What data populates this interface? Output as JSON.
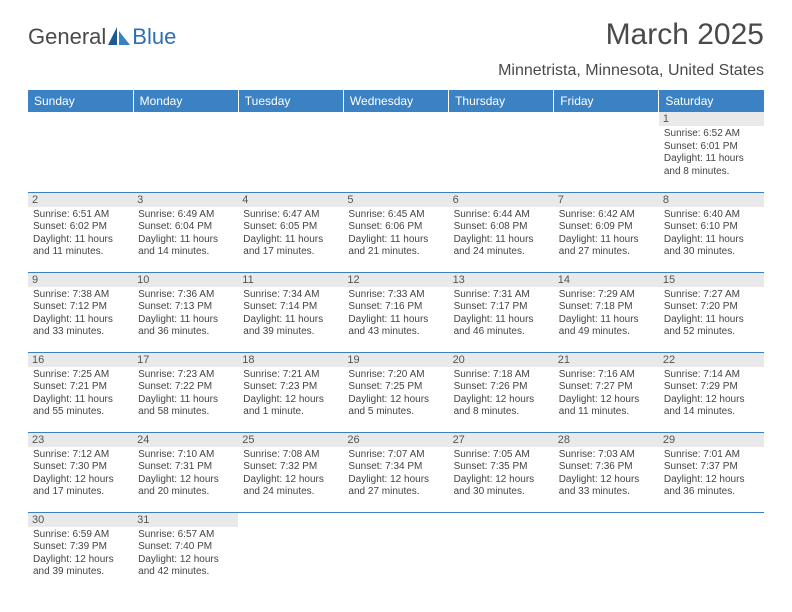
{
  "logo": {
    "text1": "General",
    "text2": "Blue"
  },
  "title": "March 2025",
  "location": "Minnetrista, Minnesota, United States",
  "colors": {
    "header_bg": "#3b82c4",
    "header_fg": "#ffffff",
    "daynum_bg": "#e9e9e9",
    "cell_border": "#3b82c4",
    "text": "#444444",
    "logo_gray": "#4a4a4a",
    "logo_blue": "#2f6fb0"
  },
  "day_headers": [
    "Sunday",
    "Monday",
    "Tuesday",
    "Wednesday",
    "Thursday",
    "Friday",
    "Saturday"
  ],
  "weeks": [
    [
      {
        "n": "",
        "sr": "",
        "ss": "",
        "d1": "",
        "d2": ""
      },
      {
        "n": "",
        "sr": "",
        "ss": "",
        "d1": "",
        "d2": ""
      },
      {
        "n": "",
        "sr": "",
        "ss": "",
        "d1": "",
        "d2": ""
      },
      {
        "n": "",
        "sr": "",
        "ss": "",
        "d1": "",
        "d2": ""
      },
      {
        "n": "",
        "sr": "",
        "ss": "",
        "d1": "",
        "d2": ""
      },
      {
        "n": "",
        "sr": "",
        "ss": "",
        "d1": "",
        "d2": ""
      },
      {
        "n": "1",
        "sr": "Sunrise: 6:52 AM",
        "ss": "Sunset: 6:01 PM",
        "d1": "Daylight: 11 hours",
        "d2": "and 8 minutes."
      }
    ],
    [
      {
        "n": "2",
        "sr": "Sunrise: 6:51 AM",
        "ss": "Sunset: 6:02 PM",
        "d1": "Daylight: 11 hours",
        "d2": "and 11 minutes."
      },
      {
        "n": "3",
        "sr": "Sunrise: 6:49 AM",
        "ss": "Sunset: 6:04 PM",
        "d1": "Daylight: 11 hours",
        "d2": "and 14 minutes."
      },
      {
        "n": "4",
        "sr": "Sunrise: 6:47 AM",
        "ss": "Sunset: 6:05 PM",
        "d1": "Daylight: 11 hours",
        "d2": "and 17 minutes."
      },
      {
        "n": "5",
        "sr": "Sunrise: 6:45 AM",
        "ss": "Sunset: 6:06 PM",
        "d1": "Daylight: 11 hours",
        "d2": "and 21 minutes."
      },
      {
        "n": "6",
        "sr": "Sunrise: 6:44 AM",
        "ss": "Sunset: 6:08 PM",
        "d1": "Daylight: 11 hours",
        "d2": "and 24 minutes."
      },
      {
        "n": "7",
        "sr": "Sunrise: 6:42 AM",
        "ss": "Sunset: 6:09 PM",
        "d1": "Daylight: 11 hours",
        "d2": "and 27 minutes."
      },
      {
        "n": "8",
        "sr": "Sunrise: 6:40 AM",
        "ss": "Sunset: 6:10 PM",
        "d1": "Daylight: 11 hours",
        "d2": "and 30 minutes."
      }
    ],
    [
      {
        "n": "9",
        "sr": "Sunrise: 7:38 AM",
        "ss": "Sunset: 7:12 PM",
        "d1": "Daylight: 11 hours",
        "d2": "and 33 minutes."
      },
      {
        "n": "10",
        "sr": "Sunrise: 7:36 AM",
        "ss": "Sunset: 7:13 PM",
        "d1": "Daylight: 11 hours",
        "d2": "and 36 minutes."
      },
      {
        "n": "11",
        "sr": "Sunrise: 7:34 AM",
        "ss": "Sunset: 7:14 PM",
        "d1": "Daylight: 11 hours",
        "d2": "and 39 minutes."
      },
      {
        "n": "12",
        "sr": "Sunrise: 7:33 AM",
        "ss": "Sunset: 7:16 PM",
        "d1": "Daylight: 11 hours",
        "d2": "and 43 minutes."
      },
      {
        "n": "13",
        "sr": "Sunrise: 7:31 AM",
        "ss": "Sunset: 7:17 PM",
        "d1": "Daylight: 11 hours",
        "d2": "and 46 minutes."
      },
      {
        "n": "14",
        "sr": "Sunrise: 7:29 AM",
        "ss": "Sunset: 7:18 PM",
        "d1": "Daylight: 11 hours",
        "d2": "and 49 minutes."
      },
      {
        "n": "15",
        "sr": "Sunrise: 7:27 AM",
        "ss": "Sunset: 7:20 PM",
        "d1": "Daylight: 11 hours",
        "d2": "and 52 minutes."
      }
    ],
    [
      {
        "n": "16",
        "sr": "Sunrise: 7:25 AM",
        "ss": "Sunset: 7:21 PM",
        "d1": "Daylight: 11 hours",
        "d2": "and 55 minutes."
      },
      {
        "n": "17",
        "sr": "Sunrise: 7:23 AM",
        "ss": "Sunset: 7:22 PM",
        "d1": "Daylight: 11 hours",
        "d2": "and 58 minutes."
      },
      {
        "n": "18",
        "sr": "Sunrise: 7:21 AM",
        "ss": "Sunset: 7:23 PM",
        "d1": "Daylight: 12 hours",
        "d2": "and 1 minute."
      },
      {
        "n": "19",
        "sr": "Sunrise: 7:20 AM",
        "ss": "Sunset: 7:25 PM",
        "d1": "Daylight: 12 hours",
        "d2": "and 5 minutes."
      },
      {
        "n": "20",
        "sr": "Sunrise: 7:18 AM",
        "ss": "Sunset: 7:26 PM",
        "d1": "Daylight: 12 hours",
        "d2": "and 8 minutes."
      },
      {
        "n": "21",
        "sr": "Sunrise: 7:16 AM",
        "ss": "Sunset: 7:27 PM",
        "d1": "Daylight: 12 hours",
        "d2": "and 11 minutes."
      },
      {
        "n": "22",
        "sr": "Sunrise: 7:14 AM",
        "ss": "Sunset: 7:29 PM",
        "d1": "Daylight: 12 hours",
        "d2": "and 14 minutes."
      }
    ],
    [
      {
        "n": "23",
        "sr": "Sunrise: 7:12 AM",
        "ss": "Sunset: 7:30 PM",
        "d1": "Daylight: 12 hours",
        "d2": "and 17 minutes."
      },
      {
        "n": "24",
        "sr": "Sunrise: 7:10 AM",
        "ss": "Sunset: 7:31 PM",
        "d1": "Daylight: 12 hours",
        "d2": "and 20 minutes."
      },
      {
        "n": "25",
        "sr": "Sunrise: 7:08 AM",
        "ss": "Sunset: 7:32 PM",
        "d1": "Daylight: 12 hours",
        "d2": "and 24 minutes."
      },
      {
        "n": "26",
        "sr": "Sunrise: 7:07 AM",
        "ss": "Sunset: 7:34 PM",
        "d1": "Daylight: 12 hours",
        "d2": "and 27 minutes."
      },
      {
        "n": "27",
        "sr": "Sunrise: 7:05 AM",
        "ss": "Sunset: 7:35 PM",
        "d1": "Daylight: 12 hours",
        "d2": "and 30 minutes."
      },
      {
        "n": "28",
        "sr": "Sunrise: 7:03 AM",
        "ss": "Sunset: 7:36 PM",
        "d1": "Daylight: 12 hours",
        "d2": "and 33 minutes."
      },
      {
        "n": "29",
        "sr": "Sunrise: 7:01 AM",
        "ss": "Sunset: 7:37 PM",
        "d1": "Daylight: 12 hours",
        "d2": "and 36 minutes."
      }
    ],
    [
      {
        "n": "30",
        "sr": "Sunrise: 6:59 AM",
        "ss": "Sunset: 7:39 PM",
        "d1": "Daylight: 12 hours",
        "d2": "and 39 minutes."
      },
      {
        "n": "31",
        "sr": "Sunrise: 6:57 AM",
        "ss": "Sunset: 7:40 PM",
        "d1": "Daylight: 12 hours",
        "d2": "and 42 minutes."
      },
      {
        "n": "",
        "sr": "",
        "ss": "",
        "d1": "",
        "d2": ""
      },
      {
        "n": "",
        "sr": "",
        "ss": "",
        "d1": "",
        "d2": ""
      },
      {
        "n": "",
        "sr": "",
        "ss": "",
        "d1": "",
        "d2": ""
      },
      {
        "n": "",
        "sr": "",
        "ss": "",
        "d1": "",
        "d2": ""
      },
      {
        "n": "",
        "sr": "",
        "ss": "",
        "d1": "",
        "d2": ""
      }
    ]
  ]
}
